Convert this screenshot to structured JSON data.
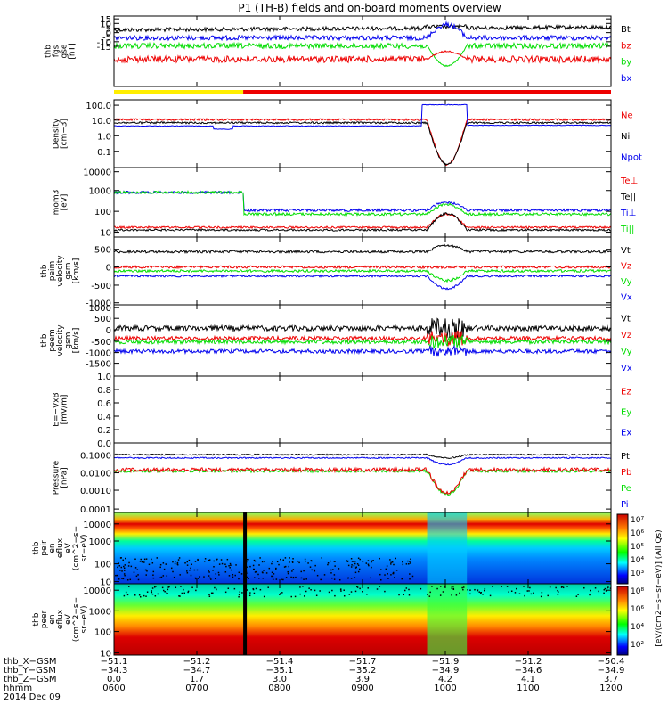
{
  "title": "P1 (TH-B) fields and on-board moments overview",
  "colors": {
    "black": "#000000",
    "red": "#ee0000",
    "green": "#00dd00",
    "blue": "#0000ee",
    "yellow": "#ffee00"
  },
  "chart_data": [
    {
      "type": "line",
      "panel": "fgs",
      "ylabel_lines": [
        "thb",
        "fgs",
        "gse",
        "[nT]"
      ],
      "ylim": [
        -18,
        16
      ],
      "yticks": [
        "15",
        "10",
        "5",
        "0",
        "-5",
        "-10",
        "-15"
      ],
      "series": [
        {
          "name": "Bt",
          "color": "black"
        },
        {
          "name": "bz",
          "color": "red"
        },
        {
          "name": "by",
          "color": "green"
        },
        {
          "name": "bx",
          "color": "blue"
        }
      ]
    },
    {
      "type": "line",
      "panel": "density",
      "log": true,
      "ylabel_lines": [
        "Density",
        "[cm−3]"
      ],
      "yticks": [
        "100.0",
        "10.0",
        "1.0",
        "0.1"
      ],
      "series": [
        {
          "name": "Ne",
          "color": "red"
        },
        {
          "name": "Ni",
          "color": "black"
        },
        {
          "name": "Npot",
          "color": "blue"
        }
      ]
    },
    {
      "type": "line",
      "panel": "temperature",
      "log": true,
      "ylabel_lines": [
        "mom3",
        "[eV]"
      ],
      "yticks": [
        "10000",
        "1000",
        "100",
        "10"
      ],
      "series": [
        {
          "name": "Te⊥",
          "color": "red"
        },
        {
          "name": "Te||",
          "color": "black"
        },
        {
          "name": "Ti⊥",
          "color": "blue"
        },
        {
          "name": "Ti||",
          "color": "green"
        }
      ]
    },
    {
      "type": "line",
      "panel": "ion_velocity",
      "ylabel_lines": [
        "thb",
        "peim",
        "velocity",
        "gsm",
        "[km/s]"
      ],
      "yticks": [
        "500",
        "0",
        "-500",
        "-1000"
      ],
      "series": [
        {
          "name": "Vt",
          "color": "black"
        },
        {
          "name": "Vz",
          "color": "red"
        },
        {
          "name": "Vy",
          "color": "green"
        },
        {
          "name": "Vx",
          "color": "blue"
        }
      ]
    },
    {
      "type": "line",
      "panel": "electron_velocity",
      "ylabel_lines": [
        "thb",
        "peem",
        "velocity",
        "gsm",
        "[km/s]"
      ],
      "yticks": [
        "1000",
        "500",
        "0",
        "-500",
        "-1000",
        "-1500"
      ],
      "series": [
        {
          "name": "Vt",
          "color": "black"
        },
        {
          "name": "Vz",
          "color": "red"
        },
        {
          "name": "Vy",
          "color": "green"
        },
        {
          "name": "Vx",
          "color": "blue"
        }
      ]
    },
    {
      "type": "line",
      "panel": "efield",
      "ylabel_lines": [
        "E=−VxB",
        "[mV/m]"
      ],
      "yticks": [
        "1.0",
        "0.8",
        "0.6",
        "0.4",
        "0.2",
        "0.0"
      ],
      "series": [
        {
          "name": "Ez",
          "color": "red"
        },
        {
          "name": "Ey",
          "color": "green"
        },
        {
          "name": "Ex",
          "color": "blue"
        }
      ]
    },
    {
      "type": "line",
      "panel": "pressure",
      "log": true,
      "ylabel_lines": [
        "Pressure",
        "[nPa]"
      ],
      "yticks": [
        "0.1000",
        "0.0100",
        "0.0010",
        "0.0001"
      ],
      "series": [
        {
          "name": "Pt",
          "color": "black"
        },
        {
          "name": "Pb",
          "color": "red"
        },
        {
          "name": "Pe",
          "color": "green"
        },
        {
          "name": "Pi",
          "color": "blue"
        }
      ]
    },
    {
      "type": "heatmap",
      "panel": "ion_spec",
      "ylabel_lines": [
        "thb",
        "peir",
        "en",
        "eflux",
        "eV",
        "(cm^2−s−",
        "sr−eV)"
      ],
      "yticks": [
        "10000",
        "1000",
        "100",
        "10"
      ]
    },
    {
      "type": "heatmap",
      "panel": "electron_spec",
      "ylabel_lines": [
        "thb",
        "peer",
        "en",
        "eflux",
        "eV",
        "(cm^2−s−",
        "sr−eV)"
      ],
      "yticks": [
        "10000",
        "1000",
        "100",
        "10"
      ]
    }
  ],
  "colorbar": {
    "label": "[eV/(cm2−s−sr−eV)] (All Qs)",
    "upper_ticks": [
      "10⁷",
      "10⁶",
      "10⁵",
      "10⁴",
      "10³"
    ],
    "lower_ticks": [
      "10⁸",
      "10⁶",
      "10⁴",
      "10²"
    ]
  },
  "xaxis": {
    "rows": [
      {
        "label": "thb_X−GSM",
        "values": [
          "−51.1",
          "−51.2",
          "−51.4",
          "−51.7",
          "−51.9",
          "−51.2",
          "−50.4"
        ]
      },
      {
        "label": "thb_Y−GSM",
        "values": [
          "−34.3",
          "−34.7",
          "−35.1",
          "−35.2",
          "−34.9",
          "−34.6",
          "−34.9"
        ]
      },
      {
        "label": "thb_Z−GSM",
        "values": [
          "0.0",
          "1.7",
          "3.0",
          "3.9",
          "4.2",
          "4.1",
          "3.7"
        ]
      },
      {
        "label": "hhmm",
        "values": [
          "0600",
          "0700",
          "0800",
          "0900",
          "1000",
          "1100",
          "1200"
        ]
      }
    ],
    "date": "2014 Dec 09"
  }
}
